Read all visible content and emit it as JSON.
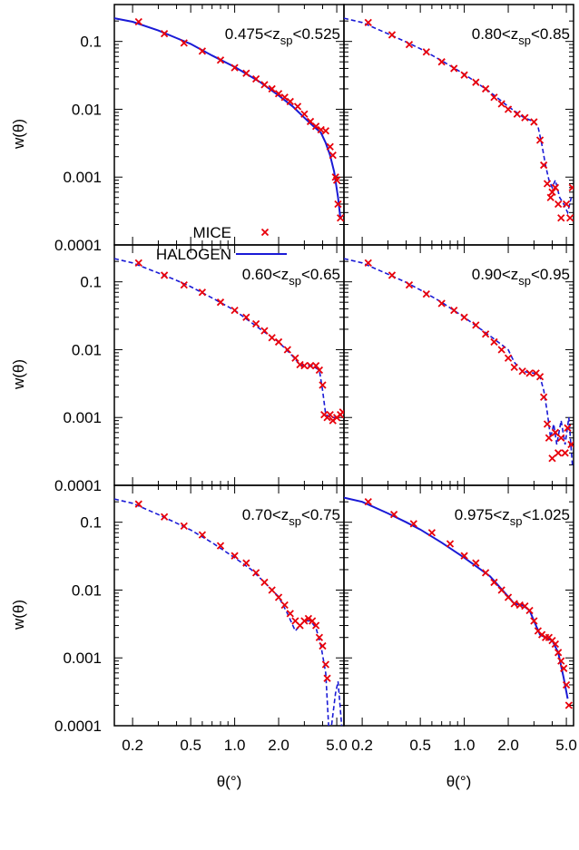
{
  "chart_data": {
    "type": "line",
    "layout": "3x2 grid of log-log panels",
    "x_scale": "log",
    "y_scale": "log",
    "xlim": [
      0.15,
      5.6
    ],
    "ylim": [
      0.0001,
      0.3
    ],
    "x_ticks": [
      0.2,
      0.5,
      1.0,
      2.0,
      5.0
    ],
    "x_tick_labels": [
      "0.2",
      "0.5",
      "1.0",
      "2.0",
      "5.0"
    ],
    "y_ticks": [
      0.0001,
      0.001,
      0.01,
      0.1
    ],
    "y_tick_labels": [
      "0.0001",
      "0.001",
      "0.01",
      "0.1"
    ],
    "xlabel": "θ(°)",
    "ylabel": "w(θ)",
    "legend": {
      "placement": "bottom-left of top-left panel",
      "entries": [
        {
          "name": "MICE",
          "marker": "x",
          "color": "#e8000b"
        },
        {
          "name": "HALOGEN",
          "style": "solid line",
          "color": "#1a1ad6"
        }
      ]
    },
    "series_colors": {
      "MICE": "#e8000b",
      "HALOGEN": "#1a1ad6"
    },
    "panels": [
      {
        "label_pre": "0.475<z",
        "label_sub": "sp",
        "label_post": "<0.525",
        "line_style": "solid",
        "halogen": [
          [
            0.15,
            0.22
          ],
          [
            0.2,
            0.195
          ],
          [
            0.3,
            0.145
          ],
          [
            0.4,
            0.112
          ],
          [
            0.5,
            0.092
          ],
          [
            0.7,
            0.062
          ],
          [
            1.0,
            0.042
          ],
          [
            1.5,
            0.025
          ],
          [
            2.0,
            0.016
          ],
          [
            2.5,
            0.011
          ],
          [
            3.0,
            0.0075
          ],
          [
            3.5,
            0.0055
          ],
          [
            3.9,
            0.0045
          ],
          [
            4.2,
            0.0032
          ],
          [
            4.5,
            0.0021
          ],
          [
            4.8,
            0.0012
          ],
          [
            5.1,
            0.0005
          ],
          [
            5.3,
            0.00024
          ]
        ],
        "mice": [
          [
            0.22,
            0.195
          ],
          [
            0.33,
            0.13
          ],
          [
            0.45,
            0.095
          ],
          [
            0.6,
            0.072
          ],
          [
            0.8,
            0.053
          ],
          [
            1.0,
            0.041
          ],
          [
            1.2,
            0.034
          ],
          [
            1.4,
            0.028
          ],
          [
            1.6,
            0.023
          ],
          [
            1.8,
            0.02
          ],
          [
            2.0,
            0.017
          ],
          [
            2.2,
            0.015
          ],
          [
            2.4,
            0.013
          ],
          [
            2.7,
            0.011
          ],
          [
            3.0,
            0.0085
          ],
          [
            3.3,
            0.0066
          ],
          [
            3.6,
            0.0056
          ],
          [
            3.9,
            0.005
          ],
          [
            4.2,
            0.0048
          ],
          [
            4.5,
            0.0028
          ],
          [
            4.7,
            0.0021
          ],
          [
            4.9,
            0.001
          ],
          [
            5.0,
            0.0009
          ],
          [
            5.1,
            0.0004
          ],
          [
            5.3,
            0.00025
          ]
        ]
      },
      {
        "label_pre": "0.80<z",
        "label_sub": "sp",
        "label_post": "<0.85",
        "line_style": "dashed",
        "halogen": [
          [
            0.15,
            0.22
          ],
          [
            0.2,
            0.19
          ],
          [
            0.3,
            0.13
          ],
          [
            0.4,
            0.098
          ],
          [
            0.5,
            0.078
          ],
          [
            0.7,
            0.052
          ],
          [
            1.0,
            0.033
          ],
          [
            1.5,
            0.018
          ],
          [
            2.0,
            0.011
          ],
          [
            2.5,
            0.0078
          ],
          [
            3.0,
            0.0065
          ],
          [
            3.2,
            0.0055
          ],
          [
            3.4,
            0.003
          ],
          [
            3.6,
            0.0015
          ],
          [
            3.8,
            0.0009
          ],
          [
            4.0,
            0.0007
          ],
          [
            4.2,
            0.0009
          ],
          [
            4.5,
            0.0005
          ],
          [
            4.8,
            0.0004
          ],
          [
            5.1,
            0.0003
          ],
          [
            5.4,
            0.0005
          ]
        ],
        "mice": [
          [
            0.22,
            0.19
          ],
          [
            0.32,
            0.125
          ],
          [
            0.42,
            0.09
          ],
          [
            0.55,
            0.07
          ],
          [
            0.7,
            0.05
          ],
          [
            0.85,
            0.04
          ],
          [
            1.0,
            0.032
          ],
          [
            1.2,
            0.025
          ],
          [
            1.4,
            0.02
          ],
          [
            1.6,
            0.015
          ],
          [
            1.8,
            0.012
          ],
          [
            2.0,
            0.01
          ],
          [
            2.3,
            0.0085
          ],
          [
            2.6,
            0.0075
          ],
          [
            3.0,
            0.0065
          ],
          [
            3.3,
            0.0035
          ],
          [
            3.5,
            0.0015
          ],
          [
            3.7,
            0.0008
          ],
          [
            3.9,
            0.0005
          ],
          [
            4.0,
            0.0006
          ],
          [
            4.2,
            0.0007
          ],
          [
            4.4,
            0.0004
          ],
          [
            4.6,
            0.00025
          ],
          [
            5.0,
            0.0004
          ],
          [
            5.3,
            0.00025
          ],
          [
            5.5,
            0.0007
          ]
        ]
      },
      {
        "label_pre": "0.60<z",
        "label_sub": "sp",
        "label_post": "<0.65",
        "line_style": "dashed",
        "halogen": [
          [
            0.15,
            0.22
          ],
          [
            0.2,
            0.19
          ],
          [
            0.3,
            0.135
          ],
          [
            0.4,
            0.105
          ],
          [
            0.5,
            0.085
          ],
          [
            0.7,
            0.058
          ],
          [
            1.0,
            0.038
          ],
          [
            1.5,
            0.02
          ],
          [
            2.0,
            0.013
          ],
          [
            2.5,
            0.008
          ],
          [
            2.8,
            0.006
          ],
          [
            3.0,
            0.0058
          ],
          [
            3.4,
            0.0058
          ],
          [
            3.8,
            0.005
          ],
          [
            4.0,
            0.0025
          ],
          [
            4.2,
            0.0011
          ],
          [
            4.6,
            0.001
          ],
          [
            5.0,
            0.001
          ],
          [
            5.4,
            0.0011
          ]
        ],
        "mice": [
          [
            0.22,
            0.19
          ],
          [
            0.33,
            0.125
          ],
          [
            0.45,
            0.09
          ],
          [
            0.6,
            0.07
          ],
          [
            0.8,
            0.05
          ],
          [
            1.0,
            0.038
          ],
          [
            1.2,
            0.03
          ],
          [
            1.4,
            0.024
          ],
          [
            1.6,
            0.019
          ],
          [
            1.8,
            0.015
          ],
          [
            2.0,
            0.013
          ],
          [
            2.3,
            0.01
          ],
          [
            2.6,
            0.0075
          ],
          [
            2.8,
            0.006
          ],
          [
            3.0,
            0.0058
          ],
          [
            3.3,
            0.0058
          ],
          [
            3.6,
            0.0058
          ],
          [
            3.8,
            0.005
          ],
          [
            4.0,
            0.003
          ],
          [
            4.1,
            0.0011
          ],
          [
            4.3,
            0.001
          ],
          [
            4.5,
            0.0011
          ],
          [
            4.7,
            0.0009
          ],
          [
            5.0,
            0.001
          ],
          [
            5.3,
            0.0011
          ],
          [
            5.5,
            0.0012
          ]
        ]
      },
      {
        "label_pre": "0.90<z",
        "label_sub": "sp",
        "label_post": "<0.95",
        "line_style": "dashed",
        "halogen": [
          [
            0.15,
            0.22
          ],
          [
            0.2,
            0.19
          ],
          [
            0.3,
            0.13
          ],
          [
            0.4,
            0.098
          ],
          [
            0.5,
            0.076
          ],
          [
            0.7,
            0.05
          ],
          [
            1.0,
            0.03
          ],
          [
            1.5,
            0.016
          ],
          [
            2.0,
            0.01
          ],
          [
            2.2,
            0.0065
          ],
          [
            2.5,
            0.0048
          ],
          [
            3.0,
            0.0045
          ],
          [
            3.3,
            0.004
          ],
          [
            3.5,
            0.0025
          ],
          [
            3.7,
            0.0012
          ],
          [
            3.9,
            0.0005
          ],
          [
            4.1,
            0.0008
          ],
          [
            4.3,
            0.0004
          ],
          [
            4.6,
            0.0009
          ],
          [
            4.9,
            0.0004
          ],
          [
            5.2,
            0.001
          ],
          [
            5.5,
            0.0002
          ]
        ],
        "mice": [
          [
            0.22,
            0.19
          ],
          [
            0.32,
            0.125
          ],
          [
            0.42,
            0.09
          ],
          [
            0.55,
            0.066
          ],
          [
            0.7,
            0.048
          ],
          [
            0.85,
            0.038
          ],
          [
            1.0,
            0.03
          ],
          [
            1.2,
            0.023
          ],
          [
            1.4,
            0.017
          ],
          [
            1.6,
            0.013
          ],
          [
            1.8,
            0.01
          ],
          [
            2.0,
            0.0075
          ],
          [
            2.2,
            0.0055
          ],
          [
            2.5,
            0.0048
          ],
          [
            2.8,
            0.0045
          ],
          [
            3.1,
            0.0045
          ],
          [
            3.3,
            0.004
          ],
          [
            3.5,
            0.002
          ],
          [
            3.7,
            0.0008
          ],
          [
            3.8,
            0.0005
          ],
          [
            4.0,
            0.00025
          ],
          [
            4.2,
            0.0006
          ],
          [
            4.4,
            0.0003
          ],
          [
            4.6,
            0.0005
          ],
          [
            4.9,
            0.0003
          ],
          [
            5.1,
            0.0007
          ],
          [
            5.4,
            0.0004
          ]
        ]
      },
      {
        "label_pre": "0.70<z",
        "label_sub": "sp",
        "label_post": "<0.75",
        "line_style": "dashed",
        "halogen": [
          [
            0.15,
            0.22
          ],
          [
            0.2,
            0.19
          ],
          [
            0.3,
            0.13
          ],
          [
            0.4,
            0.097
          ],
          [
            0.5,
            0.077
          ],
          [
            0.7,
            0.05
          ],
          [
            1.0,
            0.03
          ],
          [
            1.3,
            0.02
          ],
          [
            1.6,
            0.013
          ],
          [
            2.0,
            0.008
          ],
          [
            2.3,
            0.0045
          ],
          [
            2.6,
            0.0025
          ],
          [
            2.8,
            0.003
          ],
          [
            3.0,
            0.0035
          ],
          [
            3.3,
            0.0035
          ],
          [
            3.6,
            0.0028
          ],
          [
            3.9,
            0.0015
          ],
          [
            4.2,
            0.0006
          ],
          [
            4.4,
            0.0001
          ],
          [
            4.6,
            0.0001
          ],
          [
            4.9,
            0.0003
          ],
          [
            5.1,
            0.00045
          ],
          [
            5.4,
            0.0001
          ]
        ],
        "mice": [
          [
            0.22,
            0.185
          ],
          [
            0.33,
            0.12
          ],
          [
            0.45,
            0.088
          ],
          [
            0.6,
            0.065
          ],
          [
            0.8,
            0.045
          ],
          [
            1.0,
            0.032
          ],
          [
            1.2,
            0.025
          ],
          [
            1.4,
            0.018
          ],
          [
            1.6,
            0.013
          ],
          [
            1.8,
            0.01
          ],
          [
            2.0,
            0.0078
          ],
          [
            2.2,
            0.006
          ],
          [
            2.4,
            0.0045
          ],
          [
            2.6,
            0.0035
          ],
          [
            2.8,
            0.003
          ],
          [
            3.0,
            0.0035
          ],
          [
            3.2,
            0.0038
          ],
          [
            3.4,
            0.0035
          ],
          [
            3.6,
            0.003
          ],
          [
            3.8,
            0.002
          ],
          [
            4.0,
            0.0015
          ],
          [
            4.2,
            0.0008
          ],
          [
            4.3,
            0.0005
          ]
        ]
      },
      {
        "label_pre": "0.975<z",
        "label_sub": "sp",
        "label_post": "<1.025",
        "line_style": "solid",
        "halogen": [
          [
            0.15,
            0.23
          ],
          [
            0.2,
            0.2
          ],
          [
            0.3,
            0.135
          ],
          [
            0.4,
            0.1
          ],
          [
            0.5,
            0.078
          ],
          [
            0.7,
            0.05
          ],
          [
            1.0,
            0.03
          ],
          [
            1.5,
            0.016
          ],
          [
            2.0,
            0.008
          ],
          [
            2.2,
            0.0063
          ],
          [
            2.5,
            0.006
          ],
          [
            2.8,
            0.005
          ],
          [
            3.0,
            0.0035
          ],
          [
            3.3,
            0.0022
          ],
          [
            3.6,
            0.002
          ],
          [
            4.0,
            0.0018
          ],
          [
            4.4,
            0.0012
          ],
          [
            4.8,
            0.0005
          ],
          [
            5.1,
            0.00025
          ]
        ],
        "mice": [
          [
            0.22,
            0.2
          ],
          [
            0.33,
            0.13
          ],
          [
            0.45,
            0.095
          ],
          [
            0.6,
            0.07
          ],
          [
            0.8,
            0.048
          ],
          [
            1.0,
            0.032
          ],
          [
            1.2,
            0.025
          ],
          [
            1.4,
            0.018
          ],
          [
            1.6,
            0.013
          ],
          [
            1.8,
            0.01
          ],
          [
            2.0,
            0.0078
          ],
          [
            2.2,
            0.0063
          ],
          [
            2.4,
            0.006
          ],
          [
            2.6,
            0.0058
          ],
          [
            2.8,
            0.005
          ],
          [
            3.0,
            0.0035
          ],
          [
            3.2,
            0.0025
          ],
          [
            3.4,
            0.0022
          ],
          [
            3.6,
            0.002
          ],
          [
            3.8,
            0.002
          ],
          [
            4.0,
            0.0018
          ],
          [
            4.2,
            0.0016
          ],
          [
            4.4,
            0.0012
          ],
          [
            4.6,
            0.0009
          ],
          [
            4.8,
            0.0007
          ],
          [
            5.0,
            0.0004
          ],
          [
            5.2,
            0.0002
          ]
        ]
      }
    ]
  }
}
